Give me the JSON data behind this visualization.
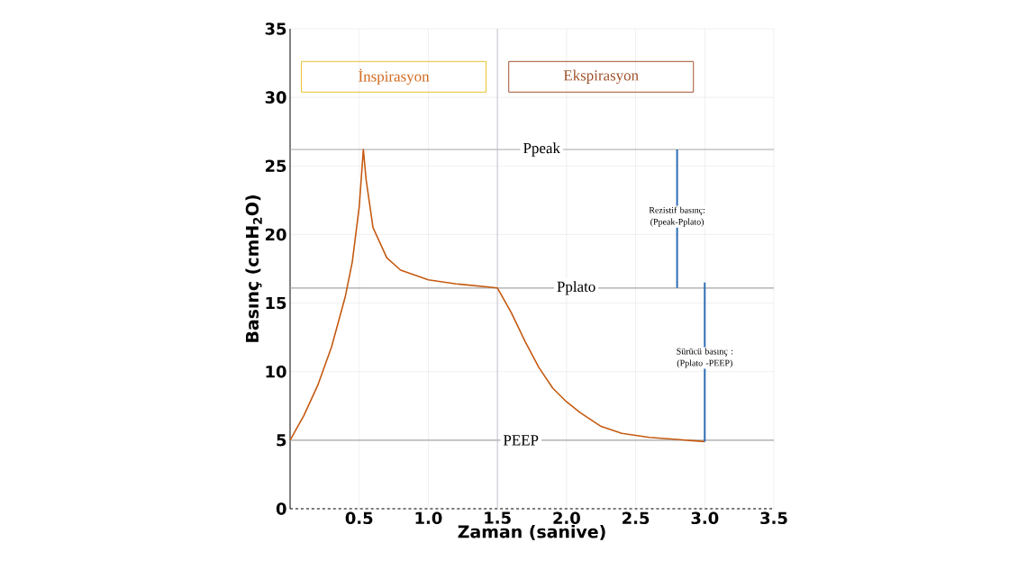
{
  "chart_data": {
    "type": "line",
    "xlabel": "Zaman (sanive)",
    "ylabel": "Basınç (cmH$_{2}$O)",
    "xlim": [
      0,
      3.5
    ],
    "ylim": [
      0,
      35
    ],
    "xticks": [
      0.5,
      {
        "value": 1,
        "label": "1.0"
      },
      1.5,
      {
        "value": 2,
        "label": "2.0"
      },
      2.5,
      {
        "value": 3,
        "label": "3.0"
      },
      3.5
    ],
    "yticks": [
      0,
      5,
      10,
      15,
      20,
      25,
      30,
      35
    ],
    "grid": true,
    "line_style": "solid",
    "marker": "none",
    "series": [
      {
        "color": "#c55a11",
        "x": [
          0,
          0.1,
          0.2,
          0.3,
          0.4,
          0.45,
          0.5,
          0.53,
          0.55,
          0.6,
          0.7,
          0.8,
          1.0,
          1.2,
          1.5,
          1.6,
          1.7,
          1.8,
          1.9,
          2.0,
          2.1,
          2.25,
          2.4,
          2.6,
          2.8,
          3.0
        ],
        "values": [
          5,
          6.8,
          9,
          11.8,
          15.5,
          18,
          22,
          26.2,
          24,
          20.5,
          18.3,
          17.4,
          16.7,
          16.4,
          16.1,
          14.3,
          12.2,
          10.3,
          8.8,
          7.8,
          7.0,
          6.0,
          5.5,
          5.2,
          5.05,
          4.9
        ]
      },
      {
        "color": "#2e6db4",
        "x": [
          2.8,
          2.8
        ],
        "values": [
          16.1,
          26.2
        ]
      },
      {
        "color": "#2e6db4",
        "x": [
          3.0,
          3.0
        ],
        "values": [
          4.9,
          16.5
        ]
      }
    ],
    "ref_lines": [
      {
        "axis": "y",
        "value": 26.2,
        "label": "Ppeak",
        "color": "#a6a6a6"
      },
      {
        "axis": "y",
        "value": 16.1,
        "label": "Pplato",
        "color": "#a6a6a6"
      },
      {
        "axis": "y",
        "value": 5,
        "label": "PEEP",
        "color": "#a6a6a6"
      },
      {
        "axis": "x",
        "value": 1.5,
        "color": "#b8b8c8"
      }
    ],
    "annotations": [
      "İnspirasyon",
      "Ekspirasyon",
      {
        "text": "Rezistif basınç: (Ppeak-Pplato)",
        "x": 2.8,
        "y": 21.3
      },
      {
        "text": "Sürücü basınç : (Pplato -PEEP)",
        "x": 3.0,
        "y": 11.0
      }
    ]
  }
}
